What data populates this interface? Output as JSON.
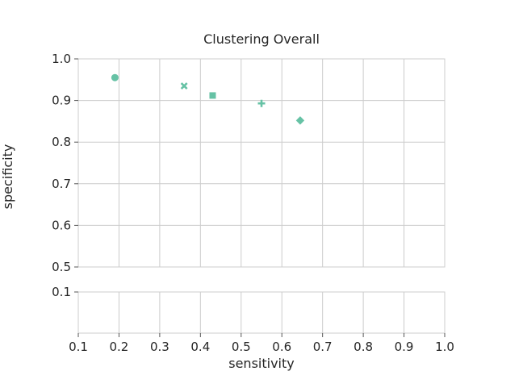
{
  "chart_data": {
    "type": "scatter",
    "title": "Clustering Overall",
    "xlabel": "sensitivity",
    "ylabel": "specificity",
    "xlim": [
      0.1,
      1.0
    ],
    "ylim_top": [
      0.5,
      1.0
    ],
    "ylim_bottom": [
      0.0,
      0.1
    ],
    "broken_y_axis": true,
    "grid": true,
    "marker_color": "#66c2a5",
    "x_ticks": [
      "0.1",
      "0.2",
      "0.3",
      "0.4",
      "0.5",
      "0.6",
      "0.7",
      "0.8",
      "0.9",
      "1.0"
    ],
    "y_ticks_top": [
      "0.5",
      "0.6",
      "0.7",
      "0.8",
      "0.9",
      "1.0"
    ],
    "y_ticks_bottom": [
      "0.1"
    ],
    "points": [
      {
        "x": 0.19,
        "y": 0.955,
        "marker": "circle"
      },
      {
        "x": 0.36,
        "y": 0.935,
        "marker": "x"
      },
      {
        "x": 0.43,
        "y": 0.912,
        "marker": "square"
      },
      {
        "x": 0.55,
        "y": 0.893,
        "marker": "plus"
      },
      {
        "x": 0.645,
        "y": 0.852,
        "marker": "diamond"
      }
    ]
  }
}
